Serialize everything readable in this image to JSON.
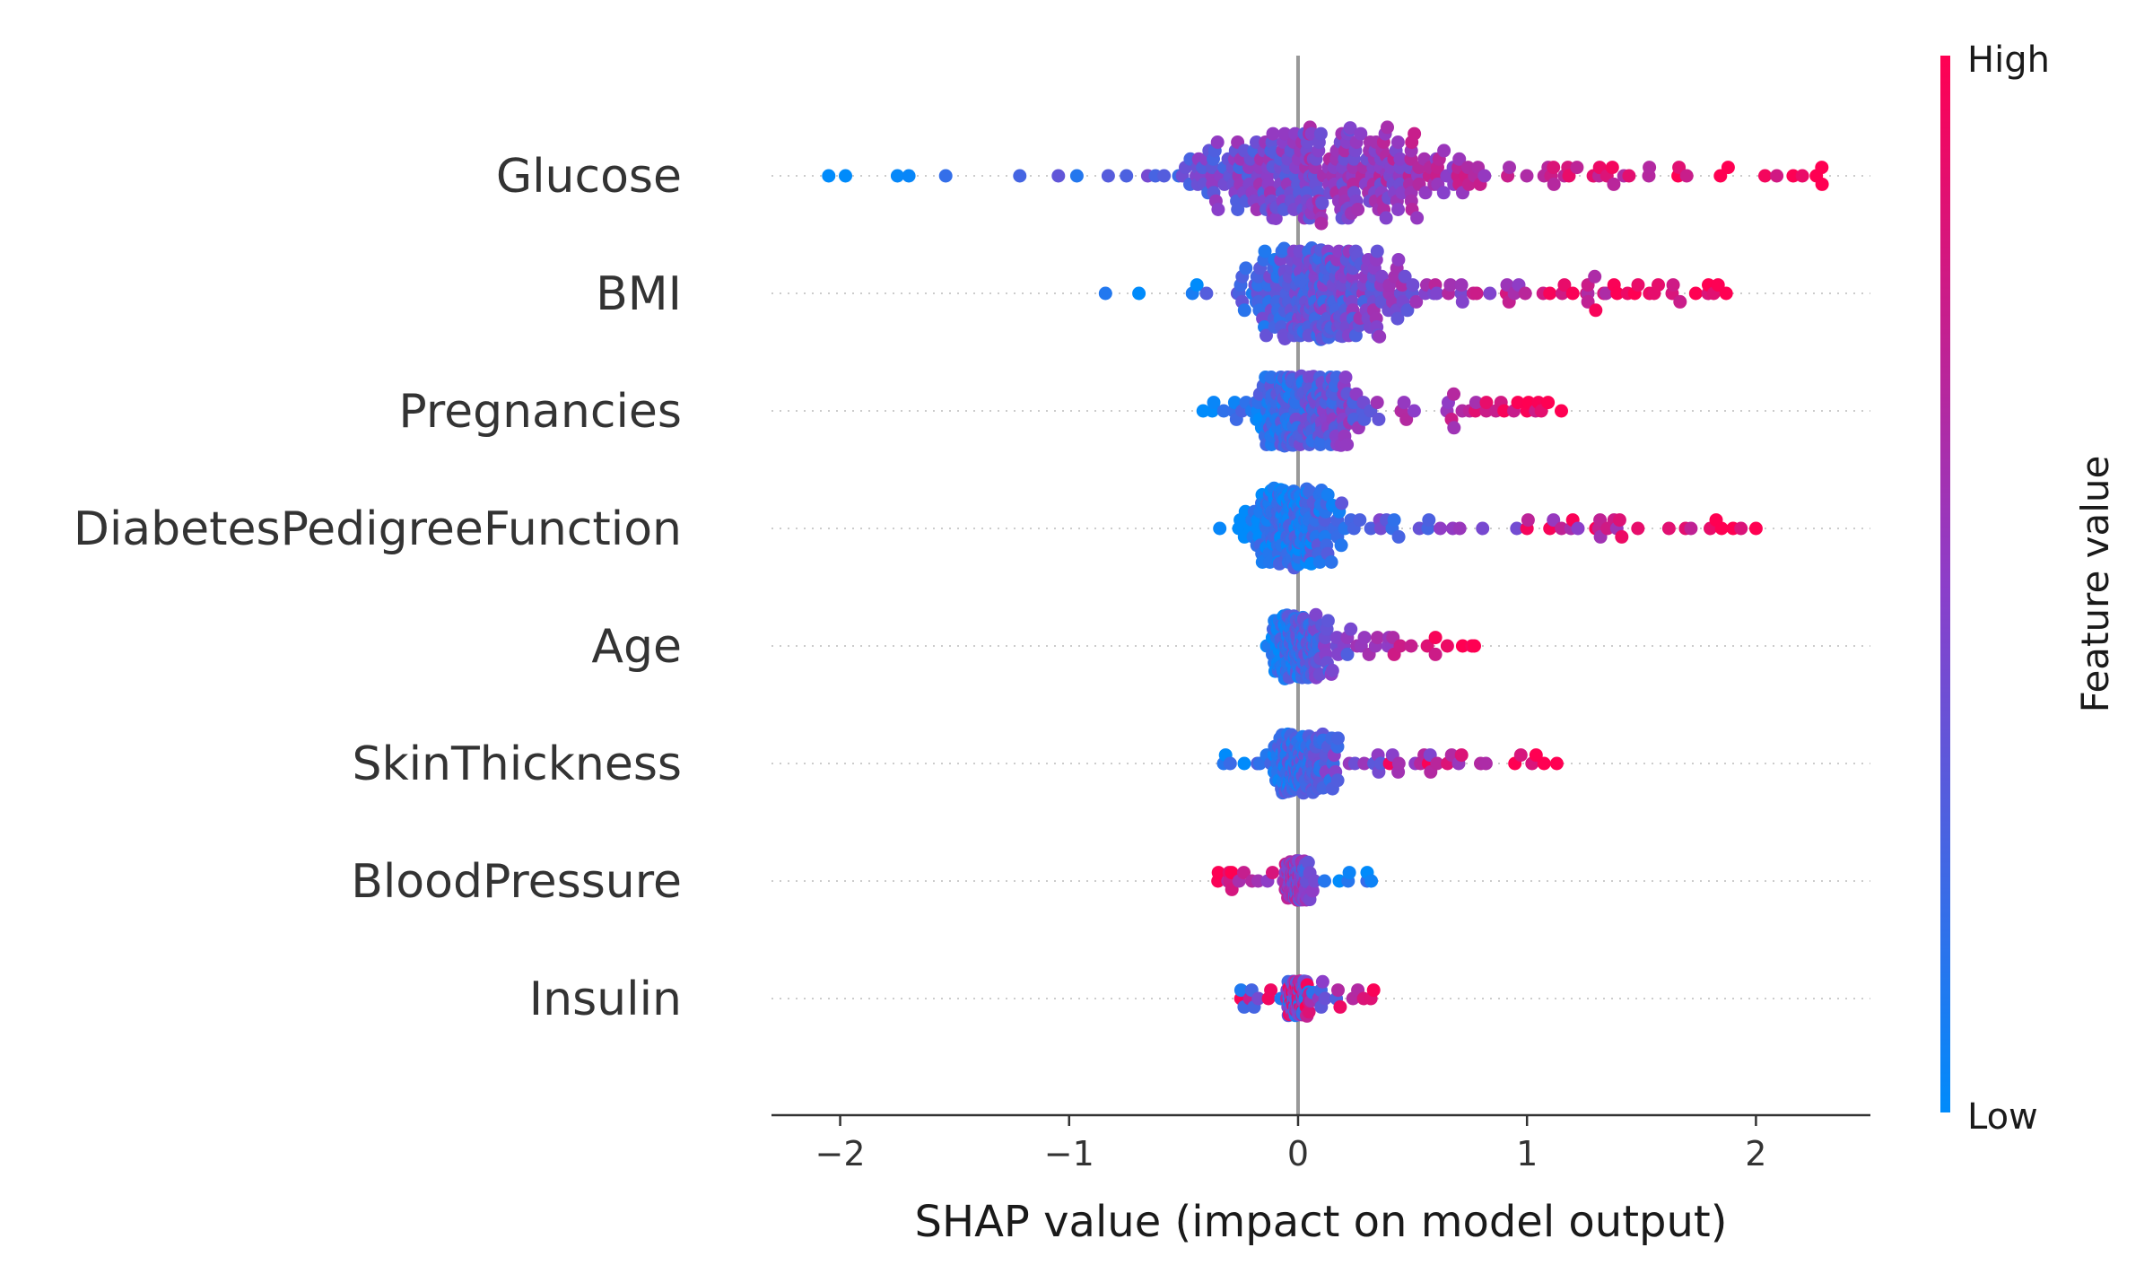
{
  "chart_data": {
    "type": "scatter",
    "subtype": "beeswarm",
    "title": "",
    "xlabel": "SHAP value (impact on model output)",
    "ylabel": "",
    "xlim": [
      -2.3,
      2.5
    ],
    "xticks": [
      {
        "value": -2,
        "label": "−2"
      },
      {
        "value": -1,
        "label": "−1"
      },
      {
        "value": 0,
        "label": "0"
      },
      {
        "value": 1,
        "label": "1"
      },
      {
        "value": 2,
        "label": "2"
      }
    ],
    "zero_line": true,
    "colorbar": {
      "title": "Feature value",
      "high_label": "High",
      "low_label": "Low",
      "high_color": "#ff0052",
      "mid_color": "#8c3ec9",
      "low_color": "#008bfb",
      "placement": "right"
    },
    "features": [
      {
        "name": "Glucose",
        "min": -2.05,
        "max": 2.3,
        "q_low": -0.55,
        "q_high": 0.7,
        "density": 1.0,
        "n": 320,
        "color_mode": "increasing",
        "outliers": [
          {
            "x": -2.05,
            "v": 0.0
          },
          {
            "x": -1.75,
            "v": 0.02
          },
          {
            "x": -1.7,
            "v": 0.03
          }
        ]
      },
      {
        "name": "BMI",
        "min": -0.85,
        "max": 1.87,
        "q_low": -0.25,
        "q_high": 0.4,
        "density": 0.95,
        "n": 300,
        "color_mode": "increasing",
        "outliers": [
          {
            "x": 1.1,
            "v": 0.97
          },
          {
            "x": 1.2,
            "v": 0.98
          },
          {
            "x": 1.3,
            "v": 0.97
          },
          {
            "x": 1.38,
            "v": 0.98
          },
          {
            "x": 1.87,
            "v": 1.0
          }
        ]
      },
      {
        "name": "Pregnancies",
        "min": -0.42,
        "max": 1.15,
        "q_low": -0.2,
        "q_high": 0.25,
        "density": 0.7,
        "n": 230,
        "color_mode": "increasing",
        "outliers": [
          {
            "x": 0.9,
            "v": 0.97
          },
          {
            "x": 1.0,
            "v": 0.98
          },
          {
            "x": 1.05,
            "v": 0.98
          },
          {
            "x": 1.15,
            "v": 1.0
          }
        ]
      },
      {
        "name": "DiabetesPedigreeFunction",
        "min": -0.35,
        "max": 2.0,
        "q_low": -0.2,
        "q_high": 0.15,
        "density": 0.8,
        "n": 250,
        "color_mode": "increasing",
        "outliers": [
          {
            "x": 1.0,
            "v": 0.96
          },
          {
            "x": 1.1,
            "v": 0.97
          },
          {
            "x": 1.2,
            "v": 0.98
          },
          {
            "x": 1.3,
            "v": 0.98
          },
          {
            "x": 1.85,
            "v": 1.0
          },
          {
            "x": 1.9,
            "v": 1.0
          },
          {
            "x": 2.0,
            "v": 1.0
          }
        ]
      },
      {
        "name": "Age",
        "min": -0.22,
        "max": 0.77,
        "q_low": -0.12,
        "q_high": 0.12,
        "density": 0.65,
        "n": 220,
        "color_mode": "increasing",
        "outliers": [
          {
            "x": 0.6,
            "v": 0.97
          },
          {
            "x": 0.77,
            "v": 1.0
          }
        ]
      },
      {
        "name": "SkinThickness",
        "min": -0.35,
        "max": 1.13,
        "q_low": -0.12,
        "q_high": 0.15,
        "density": 0.6,
        "n": 200,
        "color_mode": "increasing",
        "outliers": [
          {
            "x": 0.4,
            "v": 0.95
          },
          {
            "x": 0.57,
            "v": 0.98
          },
          {
            "x": 1.13,
            "v": 1.0
          }
        ]
      },
      {
        "name": "BloodPressure",
        "min": -0.35,
        "max": 0.32,
        "q_low": -0.05,
        "q_high": 0.05,
        "density": 0.4,
        "n": 160,
        "color_mode": "decreasing",
        "outliers": [
          {
            "x": -0.35,
            "v": 0.98
          },
          {
            "x": 0.32,
            "v": 0.05
          }
        ]
      },
      {
        "name": "Insulin",
        "min": -0.25,
        "max": 0.33,
        "q_low": -0.05,
        "q_high": 0.05,
        "density": 0.35,
        "n": 150,
        "color_mode": "mixed",
        "outliers": [
          {
            "x": -0.25,
            "v": 0.97
          },
          {
            "x": 0.33,
            "v": 0.98
          }
        ]
      }
    ]
  }
}
